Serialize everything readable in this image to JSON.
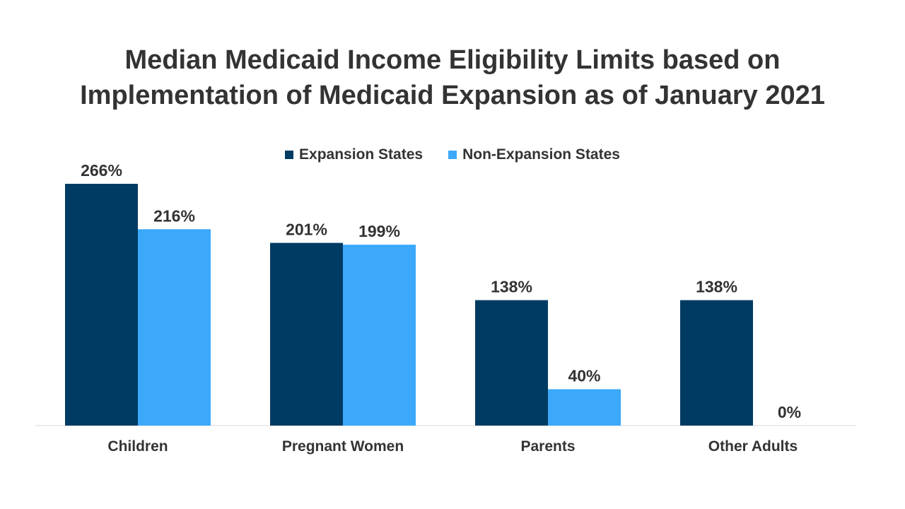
{
  "chart_data": {
    "type": "bar",
    "title_lines": [
      "Median Medicaid Income Eligibility Limits based on",
      "Implementation of Medicaid Expansion as of January 2021"
    ],
    "categories": [
      "Children",
      "Pregnant Women",
      "Parents",
      "Other Adults"
    ],
    "series": [
      {
        "name": "Expansion States",
        "color": "#003b63",
        "values": [
          266,
          201,
          138,
          138
        ],
        "labels": [
          "266%",
          "201%",
          "138%",
          "138%"
        ]
      },
      {
        "name": "Non-Expansion States",
        "color": "#3ba8fa",
        "values": [
          216,
          199,
          40,
          0
        ],
        "labels": [
          "216%",
          "199%",
          "40%",
          "0%"
        ]
      }
    ],
    "ylim": [
      0,
      266
    ],
    "legend_position": "top-center",
    "grid": false
  }
}
